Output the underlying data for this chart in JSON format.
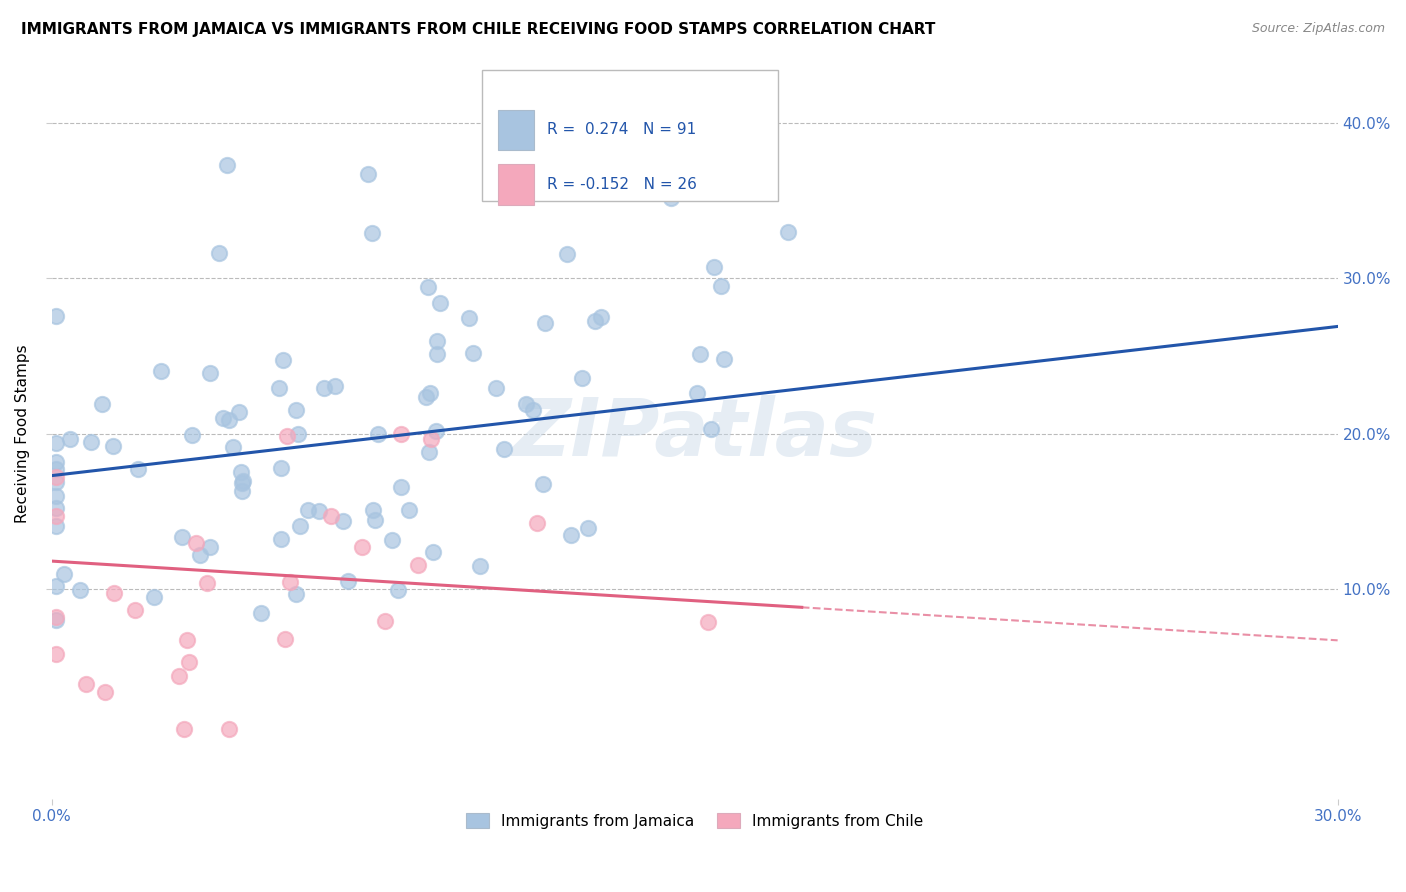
{
  "title": "IMMIGRANTS FROM JAMAICA VS IMMIGRANTS FROM CHILE RECEIVING FOOD STAMPS CORRELATION CHART",
  "source": "Source: ZipAtlas.com",
  "ylabel": "Receiving Food Stamps",
  "ylabel_right_ticks": [
    "40.0%",
    "30.0%",
    "20.0%",
    "10.0%"
  ],
  "ylabel_right_vals": [
    0.4,
    0.3,
    0.2,
    0.1
  ],
  "xmin": 0.0,
  "xmax": 0.3,
  "ymin": -0.035,
  "ymax": 0.435,
  "jamaica_R": 0.274,
  "jamaica_N": 91,
  "chile_R": -0.152,
  "chile_N": 26,
  "jamaica_color": "#a8c4e0",
  "chile_color": "#f4a8bc",
  "jamaica_line_color": "#2255aa",
  "chile_line_color": "#e06080",
  "background_color": "#ffffff",
  "grid_color": "#bbbbbb",
  "watermark": "ZIPatlas",
  "legend_jamaica_color": "#a8c4e0",
  "legend_chile_color": "#f4a8bc"
}
